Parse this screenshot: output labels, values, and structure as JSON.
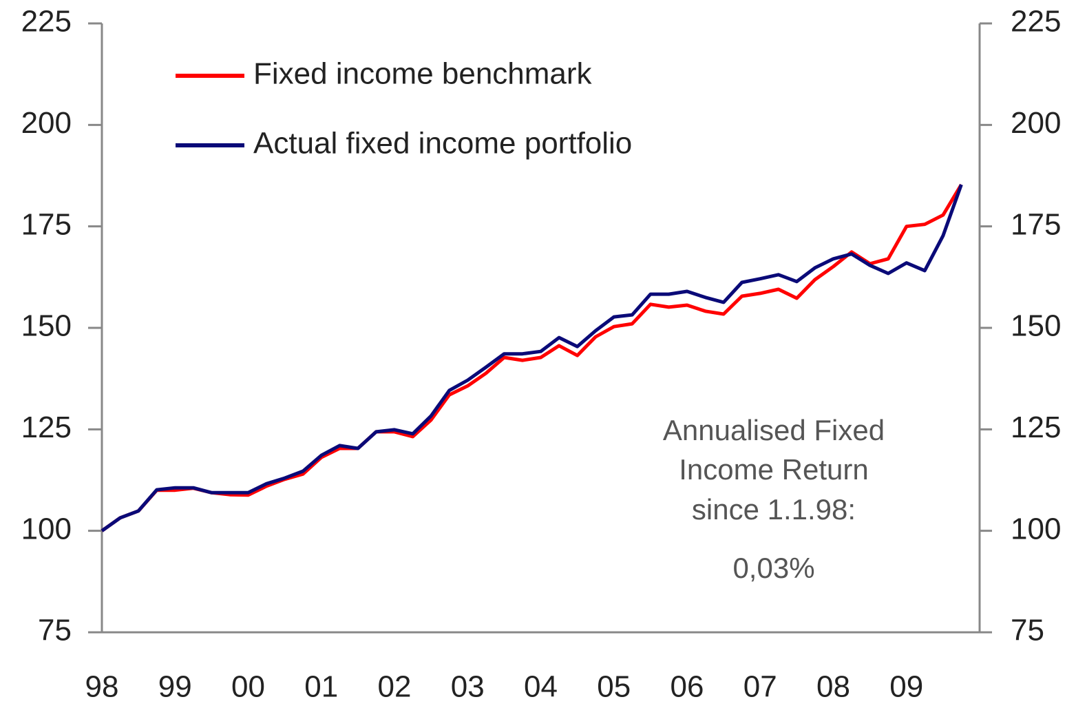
{
  "chart_data": {
    "type": "line",
    "x": [
      0,
      1,
      2,
      3,
      4,
      5,
      6,
      7,
      8,
      9,
      10,
      11,
      12,
      13,
      14,
      15,
      16,
      17,
      18,
      19,
      20,
      21,
      22,
      23,
      24,
      25,
      26,
      27,
      28,
      29,
      30,
      31,
      32,
      33,
      34,
      35,
      36,
      37,
      38,
      39,
      40,
      41,
      42,
      43,
      44,
      45,
      46,
      47
    ],
    "xlim": [
      0,
      48
    ],
    "xticks": [
      {
        "value": 0,
        "label": "98"
      },
      {
        "value": 4,
        "label": "99"
      },
      {
        "value": 8,
        "label": "00"
      },
      {
        "value": 12,
        "label": "01"
      },
      {
        "value": 16,
        "label": "02"
      },
      {
        "value": 20,
        "label": "03"
      },
      {
        "value": 24,
        "label": "04"
      },
      {
        "value": 28,
        "label": "05"
      },
      {
        "value": 32,
        "label": "06"
      },
      {
        "value": 36,
        "label": "07"
      },
      {
        "value": 40,
        "label": "08"
      },
      {
        "value": 44,
        "label": "09"
      }
    ],
    "ylim": [
      75,
      225
    ],
    "yticks": [
      75,
      100,
      125,
      150,
      175,
      200,
      225
    ],
    "y2lim": [
      75,
      225
    ],
    "y2ticks": [
      75,
      100,
      125,
      150,
      175,
      200,
      225
    ],
    "series": [
      {
        "name": "Fixed income benchmark",
        "color": "#ff0000",
        "values": [
          100,
          103.2,
          104.9,
          110,
          110,
          110.5,
          109.4,
          108.9,
          108.8,
          111,
          112.7,
          114,
          118.1,
          120.3,
          120.3,
          124.4,
          124.4,
          123.2,
          127.3,
          133.5,
          135.7,
          138.8,
          142.7,
          142,
          142.7,
          145.6,
          143.2,
          147.8,
          150.3,
          151,
          155.8,
          155.1,
          155.6,
          154.1,
          153.4,
          157.8,
          158.5,
          159.5,
          157.3,
          161.9,
          165.1,
          168.7,
          165.8,
          167,
          175,
          175.5,
          177.8,
          185.3
        ]
      },
      {
        "name": "Actual fixed income portfolio",
        "color": "#0a0a78",
        "values": [
          100,
          103.2,
          104.9,
          110.1,
          110.6,
          110.6,
          109.4,
          109.4,
          109.4,
          111.6,
          113,
          114.7,
          118.6,
          121,
          120.3,
          124.4,
          124.9,
          123.9,
          128.3,
          134.6,
          137.1,
          140.3,
          143.6,
          143.6,
          144.2,
          147.6,
          145.4,
          149.3,
          152.7,
          153.2,
          158.3,
          158.3,
          159,
          157.5,
          156.3,
          161.2,
          162.1,
          163.1,
          161.4,
          164.8,
          167,
          168.2,
          165.4,
          163.4,
          166,
          164.1,
          172.7,
          185.3
        ]
      }
    ],
    "annotation": [
      "Annualised Fixed",
      "Income Return",
      "since 1.1.98:",
      "0,03%"
    ]
  }
}
